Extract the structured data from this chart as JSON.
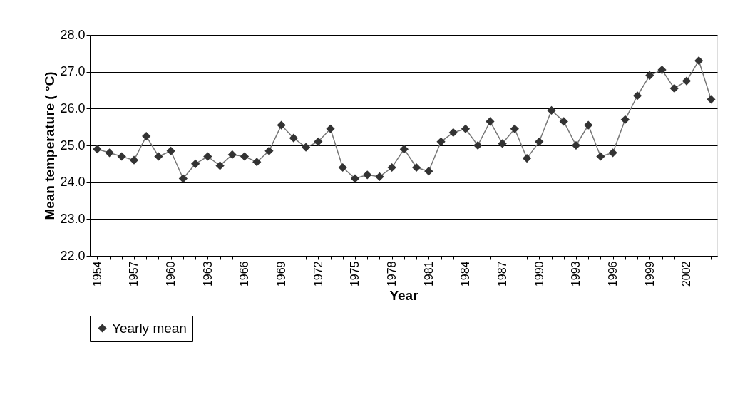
{
  "chart_data": {
    "type": "line",
    "xlabel": "Year",
    "ylabel": "Mean temperature ( °C)",
    "x": [
      1954,
      1955,
      1956,
      1957,
      1958,
      1959,
      1960,
      1961,
      1962,
      1963,
      1964,
      1965,
      1966,
      1967,
      1968,
      1969,
      1970,
      1971,
      1972,
      1973,
      1974,
      1975,
      1976,
      1977,
      1978,
      1979,
      1980,
      1981,
      1982,
      1983,
      1984,
      1985,
      1986,
      1987,
      1988,
      1989,
      1990,
      1991,
      1992,
      1993,
      1994,
      1995,
      1996,
      1997,
      1998,
      1999,
      2000,
      2001,
      2002,
      2003,
      2004
    ],
    "series": [
      {
        "name": "Yearly mean",
        "color": "#333333",
        "values": [
          24.9,
          24.8,
          24.7,
          24.6,
          25.25,
          24.7,
          24.85,
          24.1,
          24.5,
          24.7,
          24.45,
          24.75,
          24.7,
          24.55,
          24.85,
          25.55,
          25.2,
          24.95,
          25.1,
          25.45,
          24.4,
          24.1,
          24.2,
          24.15,
          24.4,
          24.9,
          24.4,
          24.3,
          25.1,
          25.35,
          25.45,
          25.0,
          25.65,
          25.05,
          25.45,
          24.65,
          25.1,
          25.95,
          25.65,
          25.0,
          25.55,
          24.7,
          24.8,
          25.7,
          26.35,
          26.9,
          27.05,
          26.55,
          26.75,
          27.3,
          26.25
        ]
      }
    ],
    "xlim": [
      1953.4,
      2004.5
    ],
    "xticks": [
      1954,
      {
        "value": 1955,
        "label": null
      },
      {
        "value": 1956,
        "label": null
      },
      1957,
      {
        "value": 1958,
        "label": null
      },
      {
        "value": 1959,
        "label": null
      },
      1960,
      {
        "value": 1961,
        "label": null
      },
      {
        "value": 1962,
        "label": null
      },
      1963,
      {
        "value": 1964,
        "label": null
      },
      {
        "value": 1965,
        "label": null
      },
      1966,
      {
        "value": 1967,
        "label": null
      },
      {
        "value": 1968,
        "label": null
      },
      1969,
      {
        "value": 1970,
        "label": null
      },
      {
        "value": 1971,
        "label": null
      },
      1972,
      {
        "value": 1973,
        "label": null
      },
      {
        "value": 1974,
        "label": null
      },
      1975,
      {
        "value": 1976,
        "label": null
      },
      {
        "value": 1977,
        "label": null
      },
      1978,
      {
        "value": 1979,
        "label": null
      },
      {
        "value": 1980,
        "label": null
      },
      1981,
      {
        "value": 1982,
        "label": null
      },
      {
        "value": 1983,
        "label": null
      },
      1984,
      {
        "value": 1985,
        "label": null
      },
      {
        "value": 1986,
        "label": null
      },
      1987,
      {
        "value": 1988,
        "label": null
      },
      {
        "value": 1989,
        "label": null
      },
      1990,
      {
        "value": 1991,
        "label": null
      },
      {
        "value": 1992,
        "label": null
      },
      1993,
      {
        "value": 1994,
        "label": null
      },
      {
        "value": 1995,
        "label": null
      },
      1996,
      {
        "value": 1997,
        "label": null
      },
      {
        "value": 1998,
        "label": null
      },
      1999,
      {
        "value": 2000,
        "label": null
      },
      {
        "value": 2001,
        "label": null
      },
      2002,
      {
        "value": 2003,
        "label": null
      },
      {
        "value": 2004,
        "label": null
      }
    ],
    "ylim": [
      22,
      28
    ],
    "yticks": [
      {
        "value": 22,
        "label": "22.0"
      },
      {
        "value": 23,
        "label": "23.0"
      },
      {
        "value": 24,
        "label": "24.0"
      },
      {
        "value": 25,
        "label": "25.0"
      },
      {
        "value": 26,
        "label": "26.0"
      },
      {
        "value": 27,
        "label": "27.0"
      },
      {
        "value": 28,
        "label": "28.0"
      }
    ],
    "grid": "y",
    "legend": "bottom",
    "marker": "diamond",
    "line_style": "solid"
  }
}
